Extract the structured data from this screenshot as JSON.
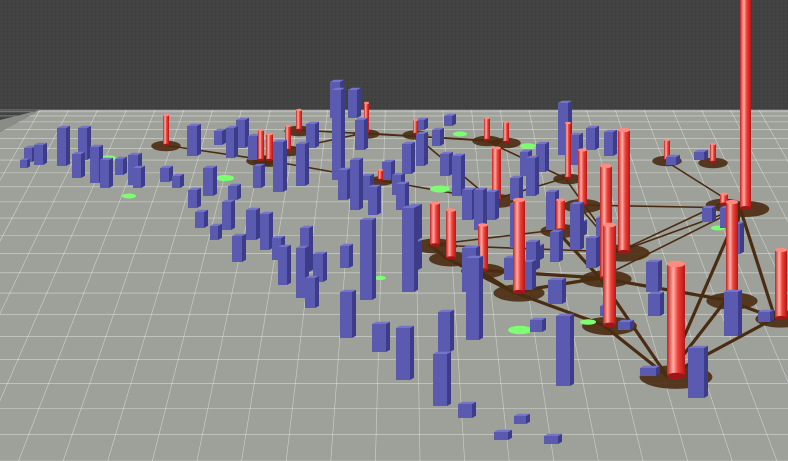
{
  "scene": {
    "type": "3d-bar-city",
    "colors": {
      "background": "#404040",
      "floor": "#9ea19a",
      "grid_line": "#ffffff",
      "blue_bar_front": "#5a5ab0",
      "blue_bar_side": "#3c3c88",
      "blue_bar_top": "#7575c8",
      "red_bar": "#ee3a36",
      "red_bar_highlight": "#ffaaa0",
      "link": "#4a2c12",
      "green_marker": "#7cff70"
    }
  }
}
